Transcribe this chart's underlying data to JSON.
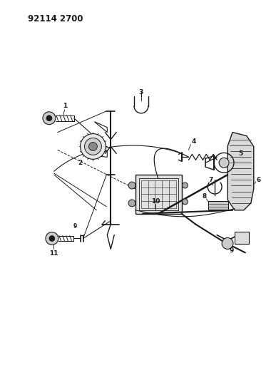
{
  "title": "92114 2700",
  "bg_color": "#ffffff",
  "line_color": "#1a1a1a",
  "title_fontsize": 8.5,
  "label_fontsize": 6.5,
  "figsize": [
    3.8,
    5.33
  ],
  "dpi": 100,
  "xlim": [
    0,
    380
  ],
  "ylim": [
    0,
    533
  ]
}
